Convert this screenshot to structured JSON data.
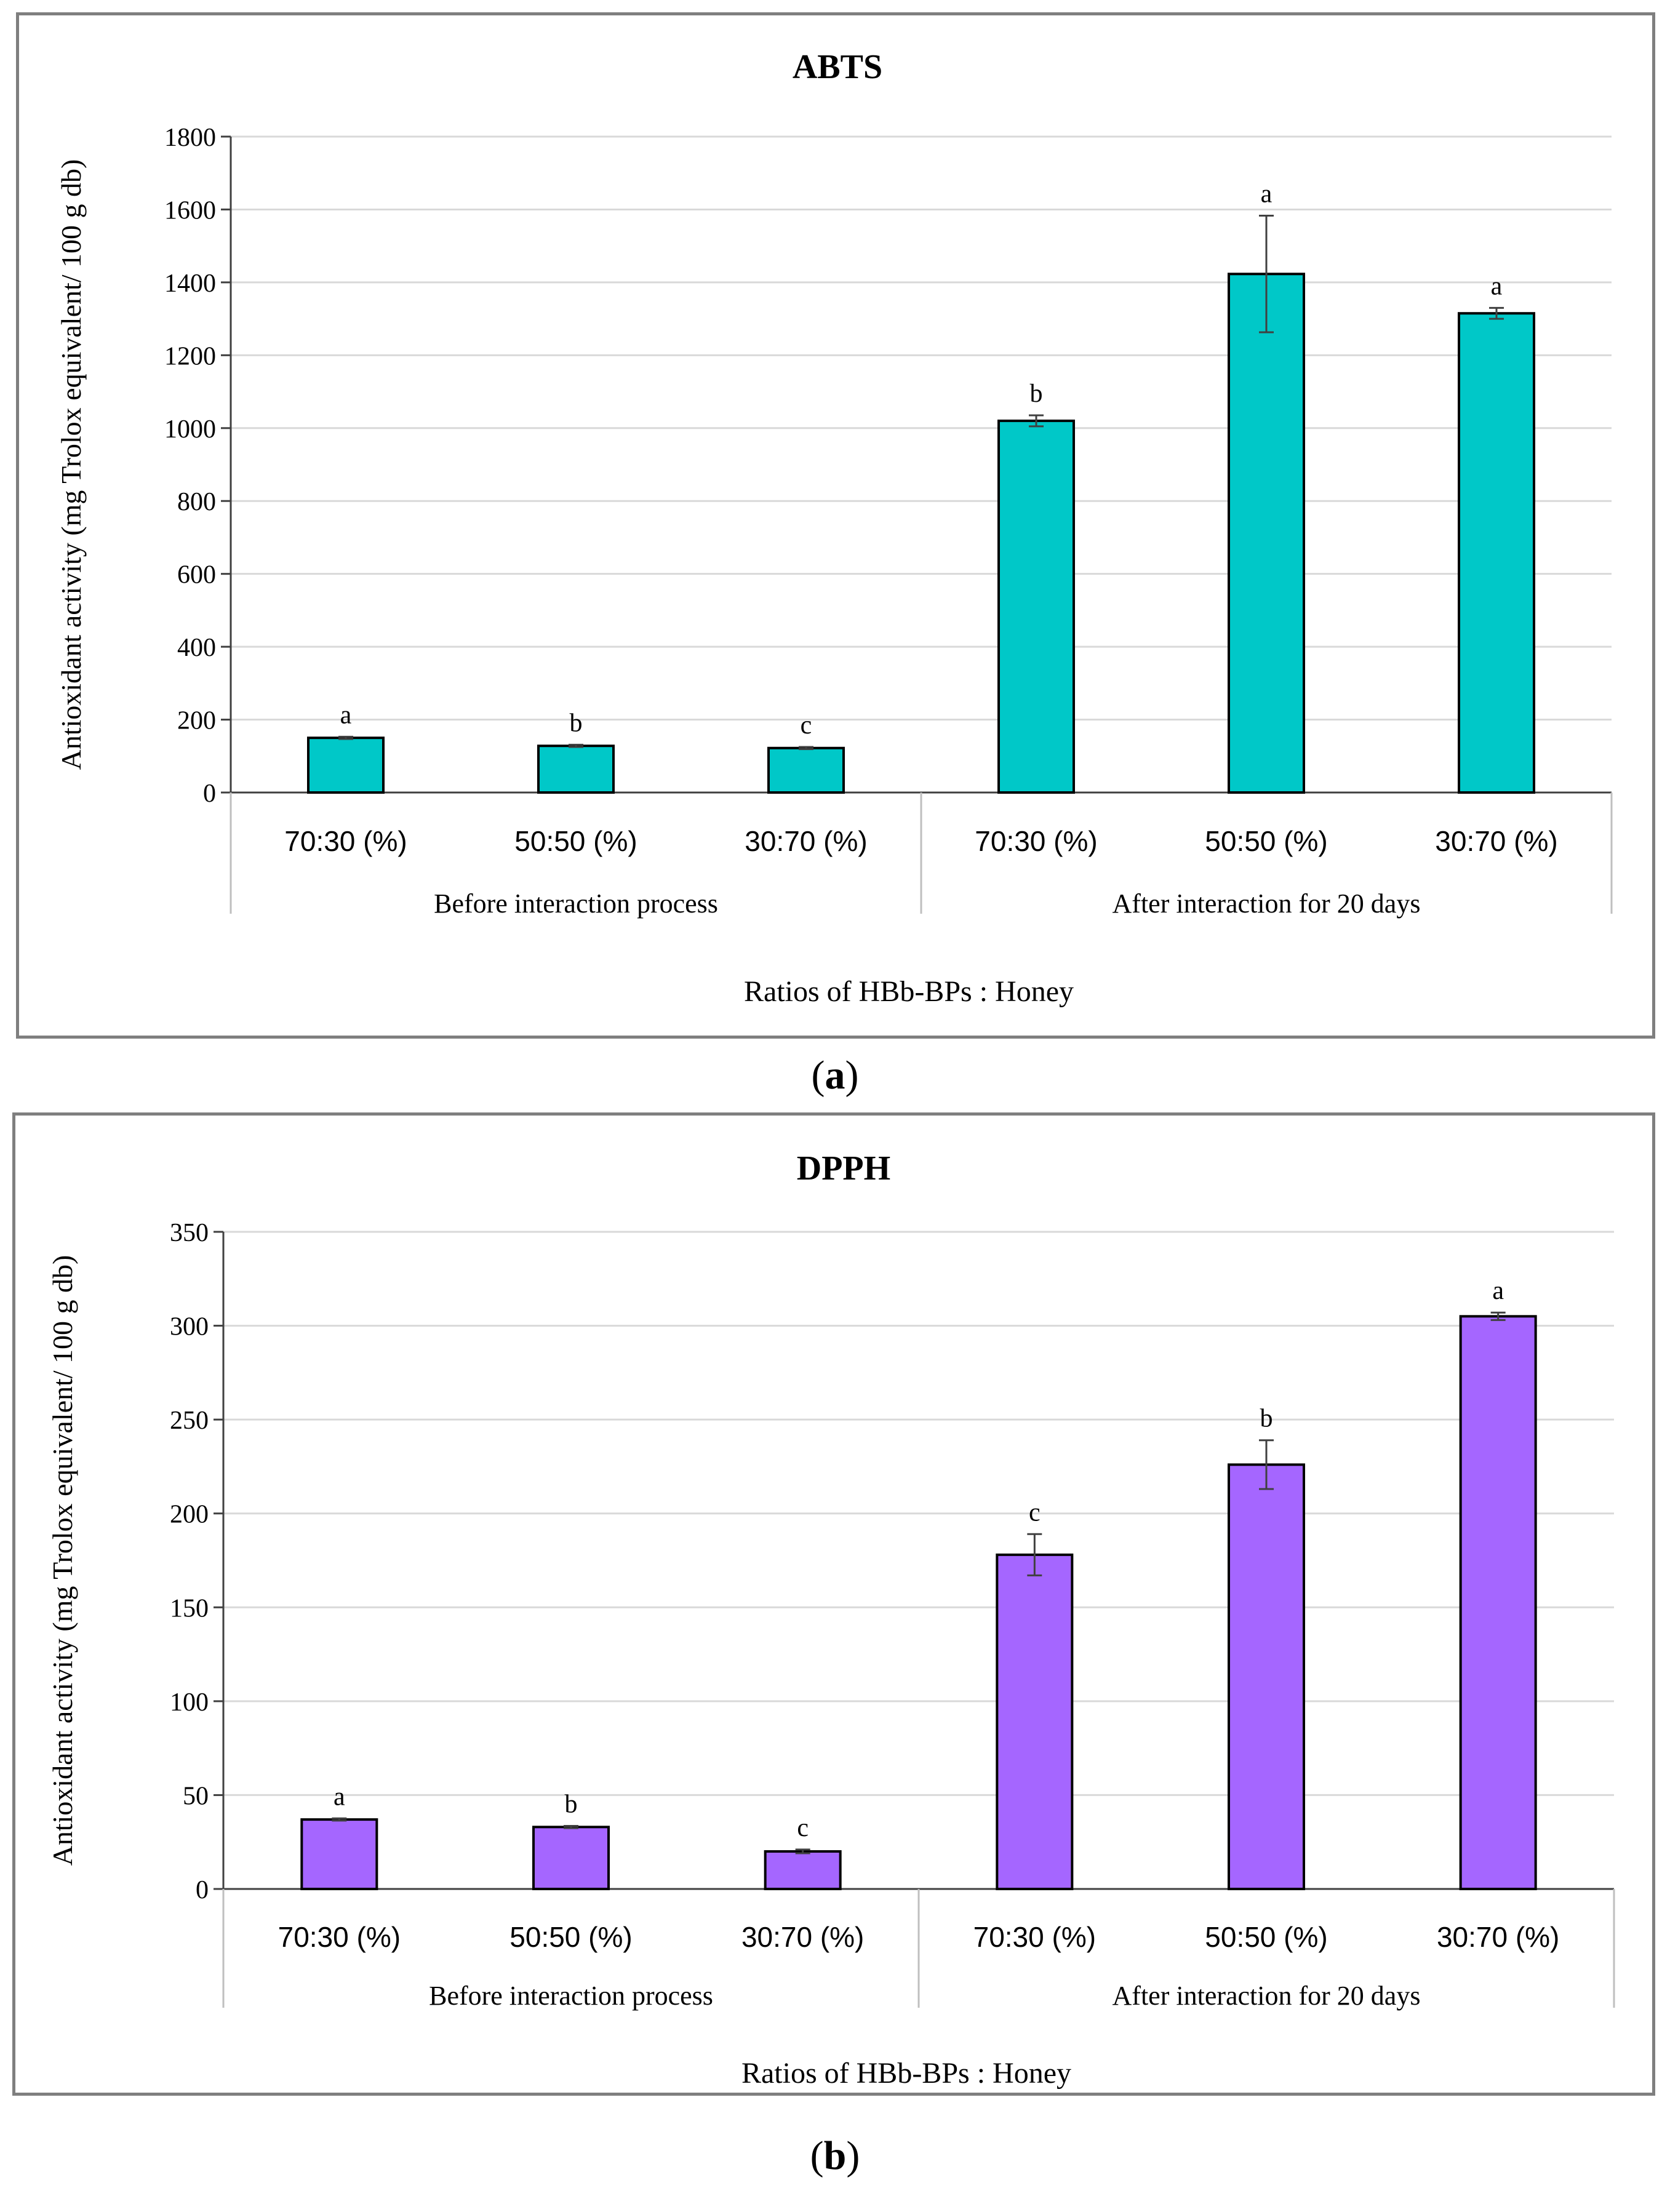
{
  "figure": {
    "captions": [
      {
        "open": "(",
        "letter": "a",
        "close": ")"
      },
      {
        "open": "(",
        "letter": "b",
        "close": ")"
      }
    ]
  },
  "chart_data": [
    {
      "type": "bar",
      "title": "ABTS",
      "ylabel": "Antioxidant activity (mg Trolox equivalent/ 100 g db)",
      "xlabel": "Ratios of HBb-BPs : Honey",
      "ylim": [
        0,
        1800
      ],
      "yticks": [
        0,
        200,
        400,
        600,
        800,
        1000,
        1200,
        1400,
        1600,
        1800
      ],
      "grid": true,
      "color": "#00c8c8",
      "groups": [
        {
          "label": "Before interaction process",
          "categories": [
            "70:30 (%)",
            "50:50 (%)",
            "30:70 (%)"
          ]
        },
        {
          "label": "After interaction for 20 days",
          "categories": [
            "70:30 (%)",
            "50:50 (%)",
            "30:70 (%)"
          ]
        }
      ],
      "values": [
        150,
        128,
        122,
        1020,
        1423,
        1315
      ],
      "errors": [
        3,
        3,
        3,
        15,
        160,
        15
      ],
      "letters": [
        "a",
        "b",
        "c",
        "b",
        "a",
        "a"
      ]
    },
    {
      "type": "bar",
      "title": "DPPH",
      "ylabel": "Antioxidant activity (mg Trolox equivalent/ 100 g db)",
      "xlabel": "Ratios of HBb-BPs : Honey",
      "ylim": [
        0,
        350
      ],
      "yticks": [
        0,
        50,
        100,
        150,
        200,
        250,
        300,
        350
      ],
      "grid": true,
      "color": "#a566ff",
      "groups": [
        {
          "label": "Before interaction process",
          "categories": [
            "70:30 (%)",
            "50:50 (%)",
            "30:70 (%)"
          ]
        },
        {
          "label": "After interaction for 20 days",
          "categories": [
            "70:30 (%)",
            "50:50 (%)",
            "30:70 (%)"
          ]
        }
      ],
      "values": [
        37,
        33,
        20,
        178,
        226,
        305
      ],
      "errors": [
        0.6,
        0.6,
        1,
        11,
        13,
        2
      ],
      "letters": [
        "a",
        "b",
        "c",
        "c",
        "b",
        "a"
      ]
    }
  ]
}
